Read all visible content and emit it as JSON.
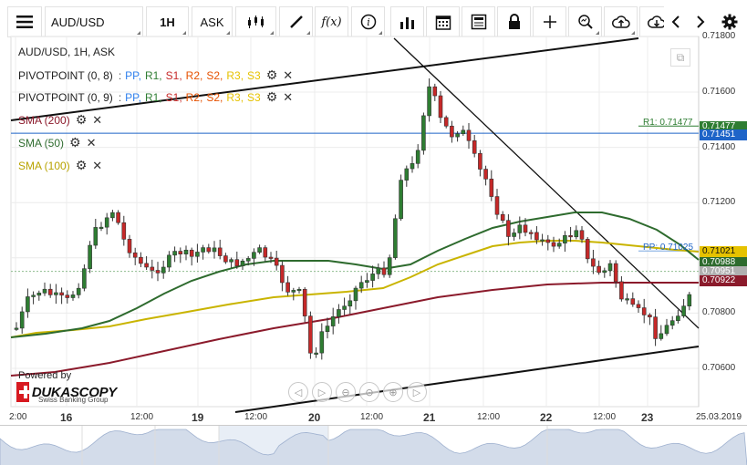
{
  "toolbar": {
    "menu_icon": "hamburger-menu-icon",
    "instrument": "AUD/USD",
    "timeframe": "1H",
    "side": "ASK",
    "buttons": [
      "candle-type-icon",
      "draw-line-icon",
      "fx-indicator-icon",
      "info-icon",
      "volume-bars-icon",
      "calendar-icon",
      "news-icon",
      "lock-icon",
      "crosshair-icon",
      "zoom-icon",
      "upload-icon",
      "download-icon",
      "chevron-left-icon",
      "chevron-right-icon",
      "gear-icon"
    ],
    "fx_label": "f(x)"
  },
  "legend": {
    "title": "AUD/USD, 1H, ASK",
    "pivot1_name": "PIVOTPOINT (0, 8)",
    "pivot2_name": "PIVOTPOINT (0, 9)",
    "pivot_sep": ":",
    "pivot_levels": [
      {
        "label": "PP,",
        "color": "#2f80ed"
      },
      {
        "label": "R1,",
        "color": "#2e7d32"
      },
      {
        "label": "S1,",
        "color": "#c62828"
      },
      {
        "label": "R2,",
        "color": "#e65100"
      },
      {
        "label": "S2,",
        "color": "#e65100"
      },
      {
        "label": "R3,",
        "color": "#e6c200"
      },
      {
        "label": "S3",
        "color": "#e6c200"
      }
    ],
    "sma200": "SMA (200)",
    "sma50": "SMA (50)",
    "sma100": "SMA (100)",
    "sma200_color": "#8b1a2b",
    "sma50_color": "#2e6b2e",
    "sma100_color": "#c9b400"
  },
  "annotations": {
    "r1": "R1: 0.71477",
    "pp": "PP: 0.71025"
  },
  "price_tags": [
    {
      "text": "0.71477",
      "color": "#2e7d32"
    },
    {
      "text": "0.71451",
      "color": "#1e64c8"
    },
    {
      "text": "0.71021",
      "color": "#e6c200"
    },
    {
      "text": "0.70988",
      "color": "#2e6b2e"
    },
    {
      "text": "0.70951",
      "color": "#b0b0b0"
    },
    {
      "text": "0.70922",
      "color": "#8b1a2b"
    }
  ],
  "overlays": {
    "powered_by": "Powered by",
    "brand": "DUKASCOPY",
    "brand_sub": "Swiss Banking Group",
    "nav_icons": [
      "nav-left-icon",
      "nav-right-icon",
      "zoom-out-icon",
      "zoom-reset-icon",
      "zoom-in-icon",
      "nav-end-icon"
    ]
  },
  "chart_data": {
    "type": "candlestick",
    "title": "AUD/USD, 1H, ASK",
    "yticks": [
      "0.71800",
      "0.71600",
      "0.71400",
      "0.71200",
      "0.71000",
      "0.70800",
      "0.70600"
    ],
    "ylim": [
      0.7045,
      0.718
    ],
    "xticks": [
      {
        "label": "2:00",
        "kind": "time"
      },
      {
        "label": "16",
        "kind": "day"
      },
      {
        "label": "12:00",
        "kind": "time"
      },
      {
        "label": "19",
        "kind": "day"
      },
      {
        "label": "12:00",
        "kind": "time"
      },
      {
        "label": "20",
        "kind": "day"
      },
      {
        "label": "12:00",
        "kind": "time"
      },
      {
        "label": "21",
        "kind": "day"
      },
      {
        "label": "12:00",
        "kind": "time"
      },
      {
        "label": "22",
        "kind": "day"
      },
      {
        "label": "12:00",
        "kind": "time"
      },
      {
        "label": "23",
        "kind": "day"
      },
      {
        "label": "25.03.2019",
        "kind": "date"
      }
    ],
    "levels": {
      "r1": 0.71477,
      "blue_line": 0.71451,
      "pp": 0.71025,
      "current": 0.70951
    },
    "colors": {
      "up": "#2e7d32",
      "down": "#c62828",
      "blue": "#1e64c8"
    },
    "grid": true,
    "legend": "top-left"
  }
}
